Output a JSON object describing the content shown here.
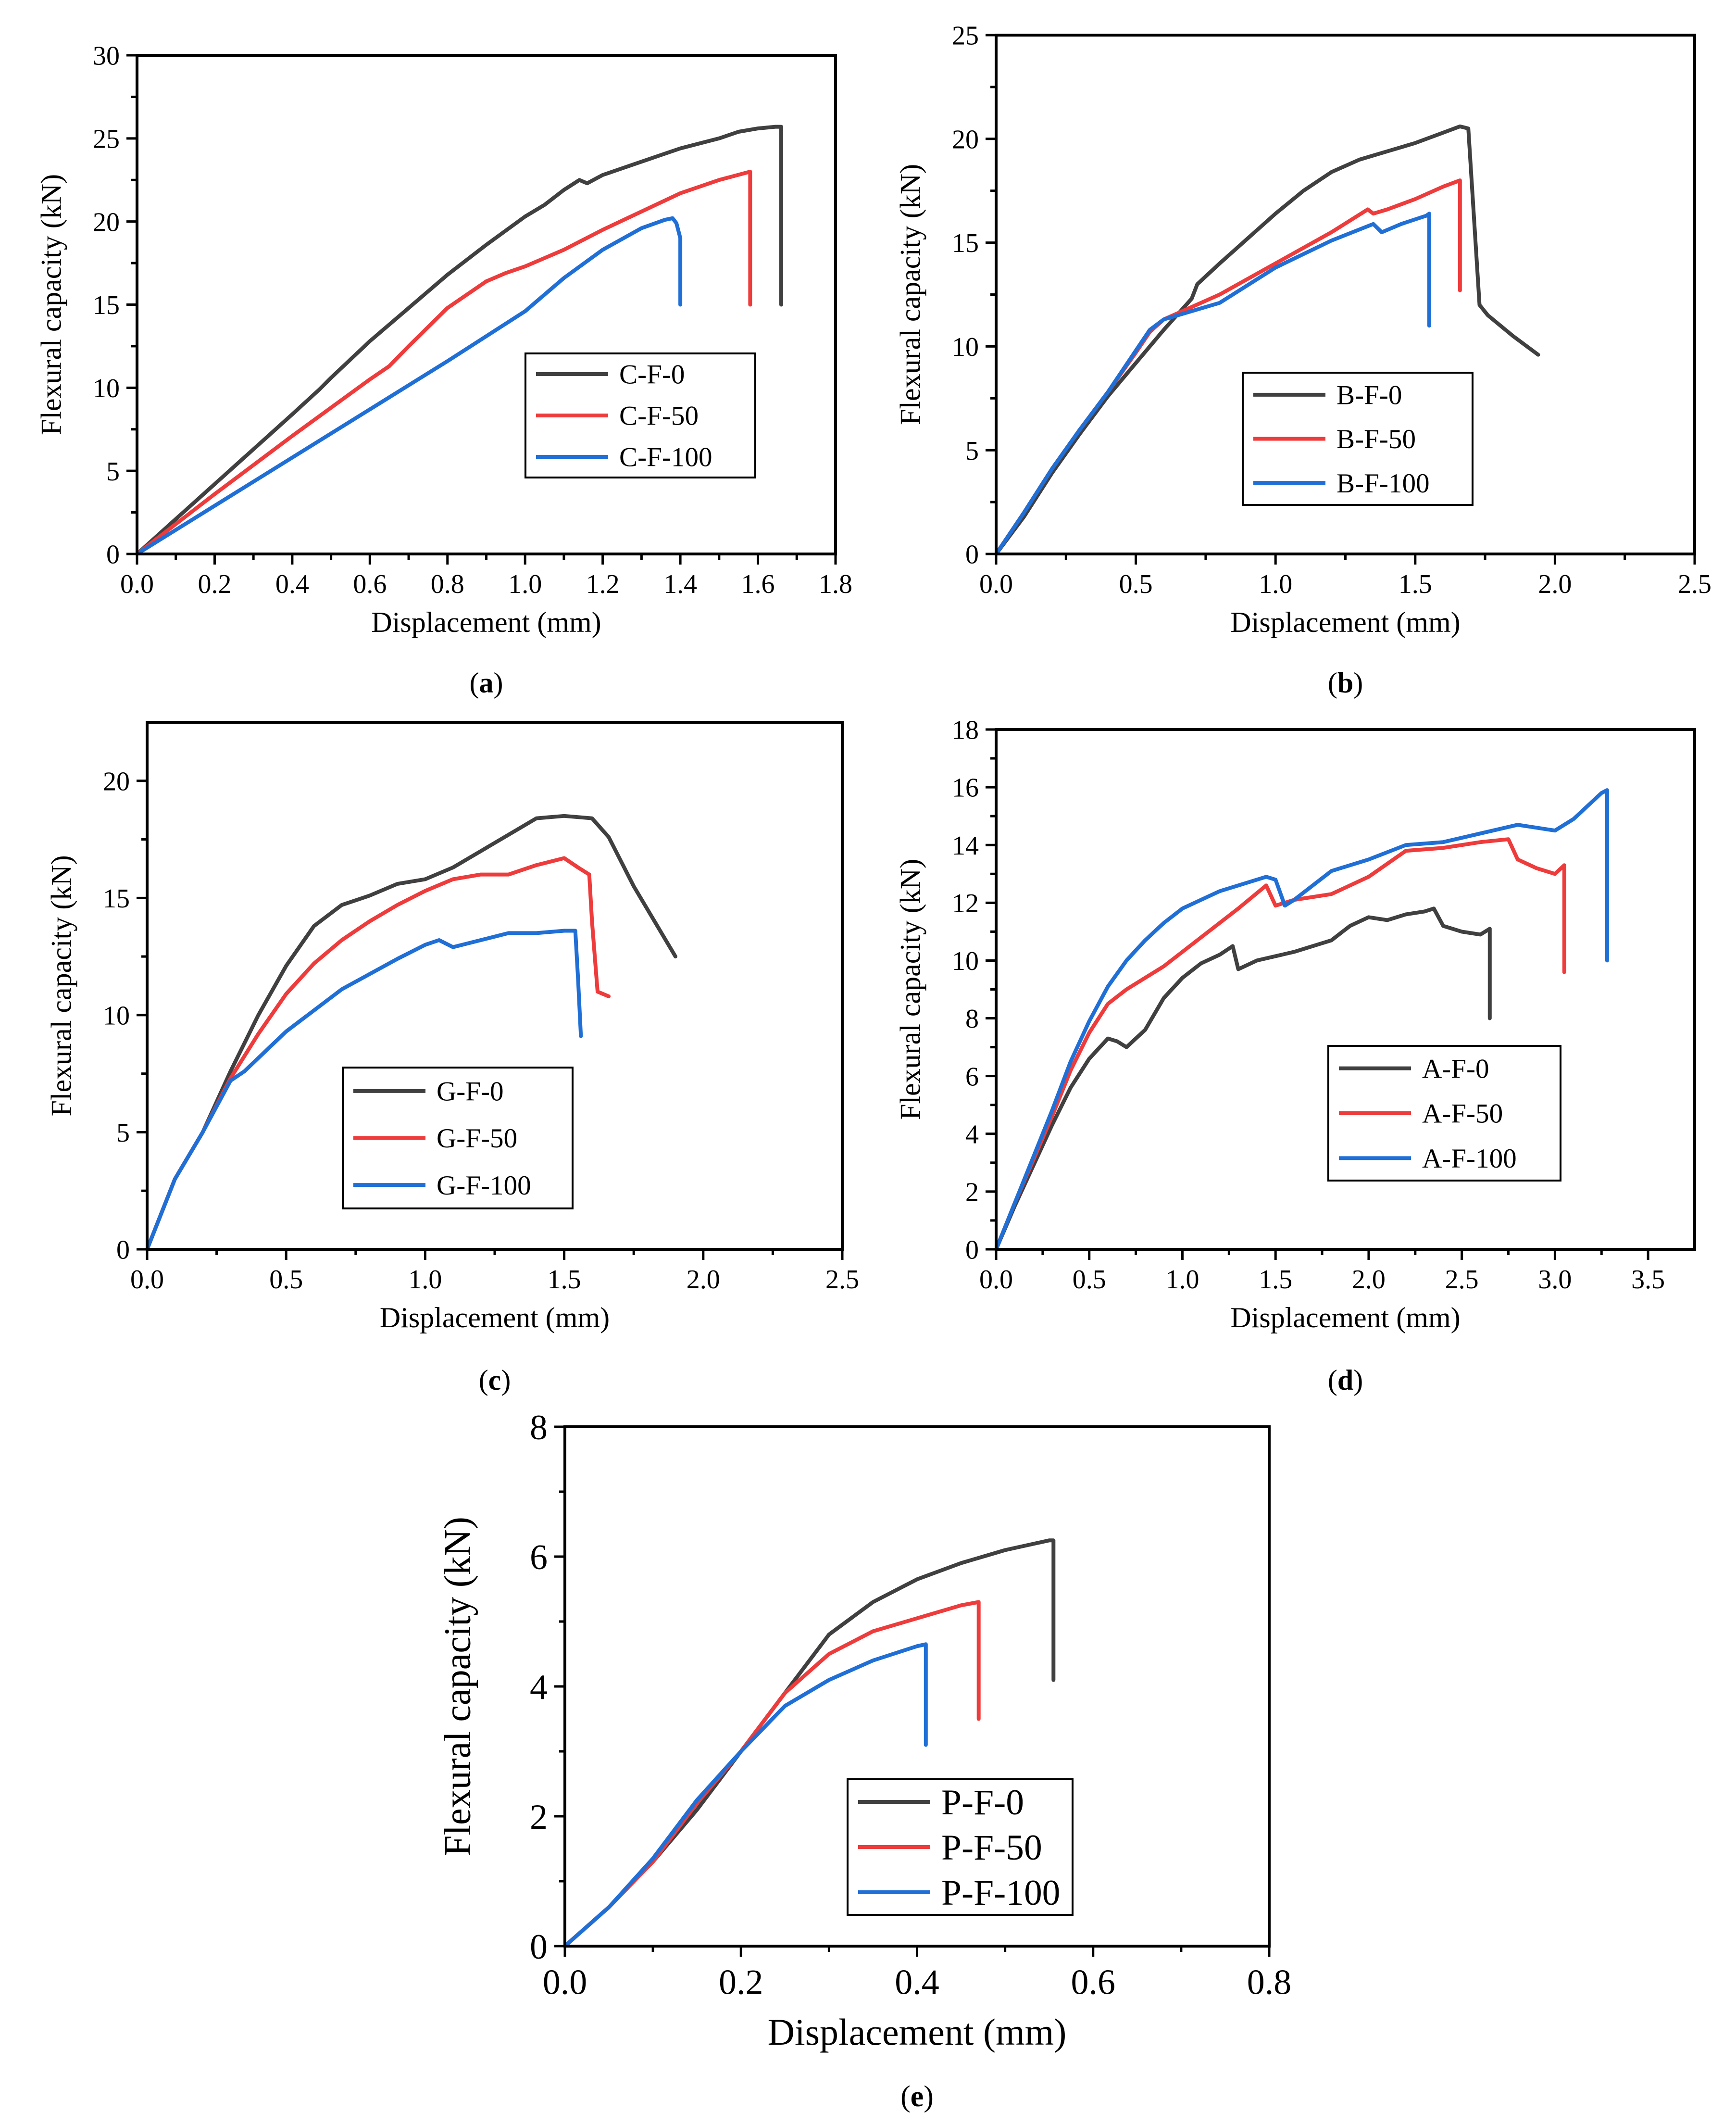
{
  "chart_data": [
    {
      "panel": "(a)",
      "type": "line",
      "xlabel": "Displacement (mm)",
      "ylabel": "Flexural capacity (kN)",
      "xlim": [
        0,
        1.8
      ],
      "ylim": [
        0,
        30
      ],
      "xticks": [
        "0.0",
        "0.2",
        "0.4",
        "0.6",
        "0.8",
        "1.0",
        "1.2",
        "1.4",
        "1.6",
        "1.8"
      ],
      "yticks": [
        "0",
        "5",
        "10",
        "15",
        "20",
        "25",
        "30"
      ],
      "legend": "center-right",
      "series": [
        {
          "name": "C-F-0",
          "color": "#404040",
          "x": [
            0,
            0.1,
            0.2,
            0.3,
            0.4,
            0.47,
            0.5,
            0.6,
            0.7,
            0.8,
            0.9,
            1.0,
            1.05,
            1.1,
            1.14,
            1.16,
            1.2,
            1.3,
            1.4,
            1.5,
            1.55,
            1.6,
            1.645,
            1.66,
            1.66
          ],
          "y": [
            0,
            2.1,
            4.2,
            6.3,
            8.4,
            9.9,
            10.6,
            12.8,
            14.8,
            16.8,
            18.6,
            20.3,
            21.0,
            21.9,
            22.5,
            22.3,
            22.8,
            23.6,
            24.4,
            25.0,
            25.4,
            25.6,
            25.7,
            25.7,
            15.0
          ]
        },
        {
          "name": "C-F-50",
          "color": "#ee3b3b",
          "x": [
            0,
            0.2,
            0.4,
            0.6,
            0.65,
            0.7,
            0.8,
            0.9,
            0.95,
            1.0,
            1.1,
            1.2,
            1.3,
            1.4,
            1.5,
            1.58,
            1.58
          ],
          "y": [
            0,
            3.6,
            7.1,
            10.5,
            11.3,
            12.5,
            14.8,
            16.4,
            16.9,
            17.3,
            18.3,
            19.5,
            20.6,
            21.7,
            22.5,
            23.0,
            15.0
          ]
        },
        {
          "name": "C-F-100",
          "color": "#1f6fd6",
          "x": [
            0,
            0.2,
            0.4,
            0.6,
            0.8,
            1.0,
            1.1,
            1.2,
            1.3,
            1.36,
            1.38,
            1.39,
            1.4,
            1.4
          ],
          "y": [
            0,
            2.9,
            5.8,
            8.7,
            11.6,
            14.6,
            16.6,
            18.3,
            19.6,
            20.1,
            20.2,
            19.9,
            19.0,
            15.0
          ]
        }
      ]
    },
    {
      "panel": "(b)",
      "type": "line",
      "xlabel": "Displacement (mm)",
      "ylabel": "Flexural capacity (kN)",
      "xlim": [
        0,
        2.5
      ],
      "ylim": [
        0,
        25
      ],
      "xticks": [
        "0.0",
        "0.5",
        "1.0",
        "1.5",
        "2.0",
        "2.5"
      ],
      "yticks": [
        "0",
        "5",
        "10",
        "15",
        "20",
        "25"
      ],
      "legend": "lower-left",
      "series": [
        {
          "name": "B-F-0",
          "color": "#404040",
          "x": [
            0,
            0.1,
            0.2,
            0.3,
            0.4,
            0.5,
            0.6,
            0.7,
            0.72,
            0.8,
            0.9,
            1.0,
            1.1,
            1.2,
            1.3,
            1.4,
            1.5,
            1.6,
            1.66,
            1.69,
            1.73,
            1.76,
            1.85,
            1.94
          ],
          "y": [
            0,
            1.8,
            3.9,
            5.8,
            7.6,
            9.2,
            10.8,
            12.3,
            13.0,
            14.0,
            15.2,
            16.4,
            17.5,
            18.4,
            19.0,
            19.4,
            19.8,
            20.3,
            20.6,
            20.5,
            12.0,
            11.5,
            10.5,
            9.6
          ]
        },
        {
          "name": "B-F-50",
          "color": "#ee3b3b",
          "x": [
            0,
            0.1,
            0.2,
            0.3,
            0.4,
            0.5,
            0.55,
            0.6,
            0.8,
            1.0,
            1.2,
            1.33,
            1.35,
            1.4,
            1.5,
            1.6,
            1.66,
            1.66
          ],
          "y": [
            0,
            2.0,
            4.1,
            6.0,
            7.8,
            9.7,
            10.7,
            11.3,
            12.5,
            14.0,
            15.5,
            16.6,
            16.4,
            16.6,
            17.1,
            17.7,
            18.0,
            12.7
          ]
        },
        {
          "name": "B-F-100",
          "color": "#1f6fd6",
          "x": [
            0,
            0.1,
            0.2,
            0.3,
            0.4,
            0.5,
            0.55,
            0.6,
            0.7,
            0.8,
            1.0,
            1.2,
            1.35,
            1.38,
            1.45,
            1.54,
            1.55,
            1.55
          ],
          "y": [
            0,
            2.0,
            4.1,
            6.0,
            7.8,
            9.8,
            10.8,
            11.3,
            11.7,
            12.1,
            13.8,
            15.1,
            15.9,
            15.5,
            15.9,
            16.3,
            16.4,
            11.0
          ]
        }
      ]
    },
    {
      "panel": "(c)",
      "type": "line",
      "xlabel": "Displacement (mm)",
      "ylabel": "Flexural capacity (kN)",
      "xlim": [
        0,
        2.5
      ],
      "ylim": [
        0,
        22.5
      ],
      "xticks": [
        "0.0",
        "0.5",
        "1.0",
        "1.5",
        "2.0",
        "2.5"
      ],
      "yticks": [
        "0",
        "5",
        "10",
        "15",
        "20"
      ],
      "legend": "lower-center",
      "series": [
        {
          "name": "G-F-0",
          "color": "#404040",
          "x": [
            0,
            0.05,
            0.1,
            0.2,
            0.3,
            0.4,
            0.5,
            0.6,
            0.7,
            0.8,
            0.9,
            1.0,
            1.1,
            1.2,
            1.3,
            1.4,
            1.5,
            1.6,
            1.66,
            1.75,
            1.9
          ],
          "y": [
            0,
            1.5,
            3.0,
            5.0,
            7.6,
            10.0,
            12.1,
            13.8,
            14.7,
            15.1,
            15.6,
            15.8,
            16.3,
            17.0,
            17.7,
            18.4,
            18.5,
            18.4,
            17.6,
            15.5,
            12.5
          ]
        },
        {
          "name": "G-F-50",
          "color": "#ee3b3b",
          "x": [
            0,
            0.05,
            0.1,
            0.2,
            0.3,
            0.4,
            0.5,
            0.6,
            0.7,
            0.8,
            0.9,
            1.0,
            1.1,
            1.2,
            1.3,
            1.4,
            1.5,
            1.55,
            1.59,
            1.6,
            1.62,
            1.66
          ],
          "y": [
            0,
            1.5,
            3.0,
            5.0,
            7.3,
            9.2,
            10.9,
            12.2,
            13.2,
            14.0,
            14.7,
            15.3,
            15.8,
            16.0,
            16.0,
            16.4,
            16.7,
            16.3,
            16.0,
            14.0,
            11.0,
            10.8
          ]
        },
        {
          "name": "G-F-100",
          "color": "#1f6fd6",
          "x": [
            0,
            0.05,
            0.1,
            0.2,
            0.3,
            0.35,
            0.5,
            0.7,
            0.9,
            1.0,
            1.05,
            1.1,
            1.2,
            1.3,
            1.4,
            1.5,
            1.54,
            1.55,
            1.56
          ],
          "y": [
            0,
            1.5,
            3.0,
            5.0,
            7.2,
            7.6,
            9.3,
            11.1,
            12.4,
            13.0,
            13.2,
            12.9,
            13.2,
            13.5,
            13.5,
            13.6,
            13.6,
            11.5,
            9.1
          ]
        }
      ]
    },
    {
      "panel": "(d)",
      "type": "line",
      "xlabel": "Displacement (mm)",
      "ylabel": "Flexural capacity (kN)",
      "xlim": [
        0,
        3.75
      ],
      "ylim": [
        0,
        18
      ],
      "xticks": [
        "0.0",
        "0.5",
        "1.0",
        "1.5",
        "2.0",
        "2.5",
        "3.0",
        "3.5"
      ],
      "yticks": [
        "0",
        "2",
        "4",
        "6",
        "8",
        "10",
        "12",
        "14",
        "16",
        "18"
      ],
      "legend": "lower-right",
      "series": [
        {
          "name": "A-F-0",
          "color": "#404040",
          "x": [
            0,
            0.1,
            0.2,
            0.3,
            0.4,
            0.5,
            0.6,
            0.65,
            0.7,
            0.8,
            0.9,
            1.0,
            1.1,
            1.2,
            1.27,
            1.3,
            1.4,
            1.6,
            1.8,
            1.9,
            2.0,
            2.1,
            2.2,
            2.3,
            2.35,
            2.4,
            2.5,
            2.6,
            2.65,
            2.65
          ],
          "y": [
            0,
            1.5,
            2.9,
            4.3,
            5.6,
            6.6,
            7.3,
            7.2,
            7.0,
            7.6,
            8.7,
            9.4,
            9.9,
            10.2,
            10.5,
            9.7,
            10.0,
            10.3,
            10.7,
            11.2,
            11.5,
            11.4,
            11.6,
            11.7,
            11.8,
            11.2,
            11.0,
            10.9,
            11.1,
            8.0
          ]
        },
        {
          "name": "A-F-50",
          "color": "#ee3b3b",
          "x": [
            0,
            0.1,
            0.2,
            0.3,
            0.4,
            0.5,
            0.6,
            0.7,
            0.9,
            1.1,
            1.3,
            1.45,
            1.5,
            1.6,
            1.8,
            2.0,
            2.2,
            2.4,
            2.6,
            2.75,
            2.8,
            2.9,
            3.0,
            3.05,
            3.05
          ],
          "y": [
            0,
            1.6,
            3.1,
            4.6,
            6.2,
            7.5,
            8.5,
            9.0,
            9.8,
            10.8,
            11.8,
            12.6,
            11.9,
            12.1,
            12.3,
            12.9,
            13.8,
            13.9,
            14.1,
            14.2,
            13.5,
            13.2,
            13.0,
            13.3,
            9.6
          ]
        },
        {
          "name": "A-F-100",
          "color": "#1f6fd6",
          "x": [
            0,
            0.1,
            0.2,
            0.3,
            0.4,
            0.5,
            0.6,
            0.7,
            0.8,
            0.9,
            1.0,
            1.1,
            1.2,
            1.3,
            1.4,
            1.45,
            1.5,
            1.55,
            1.6,
            1.8,
            2.0,
            2.2,
            2.4,
            2.6,
            2.8,
            2.9,
            3.0,
            3.1,
            3.2,
            3.25,
            3.28,
            3.28
          ],
          "y": [
            0,
            1.6,
            3.2,
            4.8,
            6.5,
            7.9,
            9.1,
            10.0,
            10.7,
            11.3,
            11.8,
            12.1,
            12.4,
            12.6,
            12.8,
            12.9,
            12.8,
            11.9,
            12.1,
            13.1,
            13.5,
            14.0,
            14.1,
            14.4,
            14.7,
            14.6,
            14.5,
            14.9,
            15.5,
            15.8,
            15.9,
            10.0
          ]
        }
      ]
    },
    {
      "panel": "(e)",
      "type": "line",
      "xlabel": "Displacement (mm)",
      "ylabel": "Flexural capacity (kN)",
      "xlim": [
        0,
        0.8
      ],
      "ylim": [
        0,
        8
      ],
      "xticks": [
        "0.0",
        "0.2",
        "0.4",
        "0.6",
        "0.8"
      ],
      "yticks": [
        "0",
        "2",
        "4",
        "6",
        "8"
      ],
      "legend": "lower-center",
      "series": [
        {
          "name": "P-F-0",
          "color": "#404040",
          "x": [
            0,
            0.025,
            0.05,
            0.1,
            0.15,
            0.2,
            0.25,
            0.3,
            0.35,
            0.4,
            0.45,
            0.5,
            0.55,
            0.555,
            0.555
          ],
          "y": [
            0,
            0.3,
            0.6,
            1.3,
            2.1,
            3.0,
            3.9,
            4.8,
            5.3,
            5.65,
            5.9,
            6.1,
            6.25,
            6.25,
            4.1
          ]
        },
        {
          "name": "P-F-50",
          "color": "#ee3b3b",
          "x": [
            0,
            0.025,
            0.05,
            0.1,
            0.15,
            0.2,
            0.25,
            0.3,
            0.35,
            0.4,
            0.45,
            0.47,
            0.47
          ],
          "y": [
            0,
            0.3,
            0.6,
            1.3,
            2.2,
            3.0,
            3.9,
            4.5,
            4.85,
            5.05,
            5.25,
            5.3,
            3.5
          ]
        },
        {
          "name": "P-F-100",
          "color": "#1f6fd6",
          "x": [
            0,
            0.025,
            0.05,
            0.1,
            0.15,
            0.2,
            0.25,
            0.3,
            0.35,
            0.4,
            0.41,
            0.41
          ],
          "y": [
            0,
            0.3,
            0.6,
            1.35,
            2.25,
            3.0,
            3.7,
            4.1,
            4.4,
            4.62,
            4.65,
            3.1
          ]
        }
      ]
    }
  ]
}
